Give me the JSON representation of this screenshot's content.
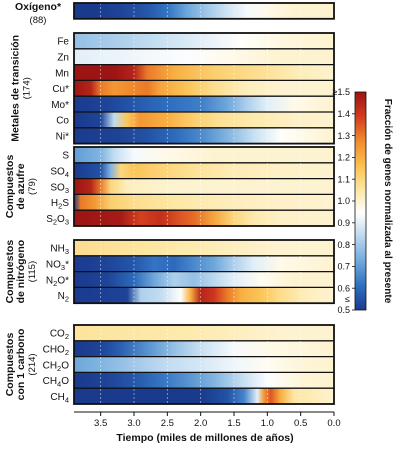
{
  "chart_data": {
    "type": "heatmap",
    "xlabel": "Tiempo (miles de millones de años)",
    "x_ticks": [
      3.5,
      3.0,
      2.5,
      2.0,
      1.5,
      1.0,
      0.5,
      0.0
    ],
    "xlim": [
      3.9,
      0.0
    ],
    "colorbar": {
      "label": "Fracción de genes normalizada al presente",
      "range": [
        0.5,
        1.5
      ],
      "ticks": [
        "0.5",
        "0.6",
        "0.7",
        "0.8",
        "0.9",
        "1.0",
        "1.1",
        "1.2",
        "1.3",
        "1.4"
      ],
      "top_label": "≥1.5",
      "bottom_label": "≤",
      "colors": [
        "#1a3a8e",
        "#2f6fc0",
        "#6fa8dc",
        "#b7d6ee",
        "#ffffff",
        "#fde6a0",
        "#fbbf4c",
        "#f08a2c",
        "#d23a1f",
        "#9c1414"
      ]
    },
    "groups": [
      {
        "name": "Oxígeno*",
        "count": "(88)",
        "rows": [
          {
            "label": "",
            "values": [
              [
                3.9,
                0.5
              ],
              [
                3.6,
                0.5
              ],
              [
                3.2,
                0.52
              ],
              [
                2.8,
                0.56
              ],
              [
                2.5,
                0.62
              ],
              [
                2.2,
                0.72
              ],
              [
                1.9,
                0.8
              ],
              [
                1.6,
                0.87
              ],
              [
                1.3,
                0.93
              ],
              [
                1.0,
                0.97
              ],
              [
                0.6,
                1.0
              ],
              [
                0.0,
                1.0
              ]
            ]
          }
        ]
      },
      {
        "name": "Metales de transición",
        "count": "(174)",
        "rows": [
          {
            "label": "Fe",
            "values": [
              [
                3.9,
                0.78
              ],
              [
                3.2,
                0.82
              ],
              [
                2.6,
                0.86
              ],
              [
                2.0,
                0.9
              ],
              [
                1.4,
                0.95
              ],
              [
                0.8,
                0.98
              ],
              [
                0.0,
                1.0
              ]
            ]
          },
          {
            "label": "Zn",
            "values": [
              [
                3.9,
                0.9
              ],
              [
                3.0,
                0.92
              ],
              [
                2.2,
                0.94
              ],
              [
                1.5,
                0.97
              ],
              [
                0.8,
                1.0
              ],
              [
                0.0,
                1.0
              ]
            ]
          },
          {
            "label": "Mn",
            "values": [
              [
                3.9,
                1.5
              ],
              [
                3.3,
                1.5
              ],
              [
                3.0,
                1.45
              ],
              [
                2.8,
                1.3
              ],
              [
                2.4,
                1.2
              ],
              [
                1.8,
                1.12
              ],
              [
                1.2,
                1.08
              ],
              [
                0.6,
                1.03
              ],
              [
                0.0,
                1.0
              ]
            ]
          },
          {
            "label": "Cu*",
            "values": [
              [
                3.9,
                1.5
              ],
              [
                3.65,
                1.45
              ],
              [
                3.5,
                1.3
              ],
              [
                3.3,
                1.25
              ],
              [
                3.0,
                1.28
              ],
              [
                2.8,
                1.3
              ],
              [
                2.6,
                1.22
              ],
              [
                2.2,
                1.15
              ],
              [
                1.8,
                1.08
              ],
              [
                1.3,
                1.02
              ],
              [
                0.8,
                1.0
              ],
              [
                0.0,
                1.0
              ]
            ]
          },
          {
            "label": "Mo*",
            "values": [
              [
                3.9,
                0.5
              ],
              [
                3.4,
                0.52
              ],
              [
                3.0,
                0.56
              ],
              [
                2.6,
                0.6
              ],
              [
                2.3,
                0.62
              ],
              [
                2.0,
                0.64
              ],
              [
                1.6,
                0.72
              ],
              [
                1.3,
                0.82
              ],
              [
                1.0,
                0.9
              ],
              [
                0.6,
                0.97
              ],
              [
                0.0,
                1.0
              ]
            ]
          },
          {
            "label": "Co",
            "values": [
              [
                3.9,
                0.5
              ],
              [
                3.5,
                0.52
              ],
              [
                3.3,
                0.85
              ],
              [
                3.1,
                1.15
              ],
              [
                2.9,
                1.25
              ],
              [
                2.5,
                1.2
              ],
              [
                2.1,
                1.12
              ],
              [
                1.7,
                1.07
              ],
              [
                1.2,
                1.04
              ],
              [
                0.6,
                1.01
              ],
              [
                0.0,
                1.0
              ]
            ]
          },
          {
            "label": "Ni*",
            "values": [
              [
                3.9,
                0.5
              ],
              [
                3.2,
                0.52
              ],
              [
                2.8,
                0.55
              ],
              [
                2.4,
                0.6
              ],
              [
                2.0,
                0.66
              ],
              [
                1.6,
                0.75
              ],
              [
                1.2,
                0.86
              ],
              [
                0.8,
                0.95
              ],
              [
                0.0,
                1.0
              ]
            ]
          }
        ]
      },
      {
        "name": "Compuestos de azufre",
        "count": "(79)",
        "rows": [
          {
            "label": "S",
            "values": [
              [
                3.9,
                0.7
              ],
              [
                3.5,
                0.75
              ],
              [
                3.3,
                0.85
              ],
              [
                3.0,
                0.93
              ],
              [
                2.5,
                0.97
              ],
              [
                1.8,
                1.0
              ],
              [
                0.0,
                1.0
              ]
            ]
          },
          {
            "label": "SO4",
            "values": [
              [
                3.9,
                0.5
              ],
              [
                3.5,
                0.55
              ],
              [
                3.35,
                0.75
              ],
              [
                3.2,
                1.1
              ],
              [
                3.0,
                1.15
              ],
              [
                2.5,
                1.1
              ],
              [
                2.0,
                1.06
              ],
              [
                1.5,
                1.03
              ],
              [
                0.8,
                1.01
              ],
              [
                0.0,
                1.0
              ]
            ]
          },
          {
            "label": "SO3",
            "values": [
              [
                3.9,
                1.5
              ],
              [
                3.65,
                1.45
              ],
              [
                3.5,
                1.3
              ],
              [
                3.35,
                1.1
              ],
              [
                3.1,
                1.02
              ],
              [
                2.5,
                1.0
              ],
              [
                0.0,
                1.0
              ]
            ]
          },
          {
            "label": "H2S",
            "values": [
              [
                3.9,
                0.5
              ],
              [
                3.8,
                1.3
              ],
              [
                3.6,
                1.25
              ],
              [
                3.35,
                1.12
              ],
              [
                3.0,
                1.08
              ],
              [
                2.4,
                1.05
              ],
              [
                1.8,
                1.03
              ],
              [
                1.0,
                1.01
              ],
              [
                0.0,
                1.0
              ]
            ]
          },
          {
            "label": "S2O3",
            "values": [
              [
                3.9,
                1.5
              ],
              [
                3.2,
                1.48
              ],
              [
                2.9,
                1.38
              ],
              [
                2.6,
                1.42
              ],
              [
                2.3,
                1.35
              ],
              [
                2.1,
                1.32
              ],
              [
                1.8,
                1.22
              ],
              [
                1.5,
                1.1
              ],
              [
                1.2,
                1.04
              ],
              [
                0.8,
                1.01
              ],
              [
                0.0,
                1.0
              ]
            ]
          }
        ]
      },
      {
        "name": "Compuestos de nitrógeno",
        "count": "(115)",
        "rows": [
          {
            "label": "NH3",
            "values": [
              [
                3.9,
                1.08
              ],
              [
                3.0,
                1.06
              ],
              [
                2.2,
                1.04
              ],
              [
                1.5,
                1.02
              ],
              [
                0.8,
                1.0
              ],
              [
                0.0,
                1.0
              ]
            ]
          },
          {
            "label": "NO3*",
            "values": [
              [
                3.9,
                0.5
              ],
              [
                3.4,
                0.52
              ],
              [
                3.0,
                0.56
              ],
              [
                2.7,
                0.62
              ],
              [
                2.4,
                0.6
              ],
              [
                2.1,
                0.66
              ],
              [
                1.8,
                0.72
              ],
              [
                1.5,
                0.82
              ],
              [
                1.2,
                0.9
              ],
              [
                0.8,
                0.97
              ],
              [
                0.0,
                1.0
              ]
            ]
          },
          {
            "label": "N2O*",
            "values": [
              [
                3.9,
                0.5
              ],
              [
                3.4,
                0.52
              ],
              [
                3.0,
                0.6
              ],
              [
                2.7,
                0.72
              ],
              [
                2.4,
                0.82
              ],
              [
                2.1,
                0.78
              ],
              [
                1.8,
                0.84
              ],
              [
                1.5,
                0.9
              ],
              [
                1.1,
                0.96
              ],
              [
                0.6,
                1.0
              ],
              [
                0.0,
                1.0
              ]
            ]
          },
          {
            "label": "N2",
            "values": [
              [
                3.9,
                0.5
              ],
              [
                3.1,
                0.52
              ],
              [
                2.9,
                0.82
              ],
              [
                2.6,
                0.85
              ],
              [
                2.3,
                0.95
              ],
              [
                2.15,
                1.2
              ],
              [
                2.0,
                1.45
              ],
              [
                1.8,
                1.4
              ],
              [
                1.6,
                1.3
              ],
              [
                1.4,
                1.2
              ],
              [
                1.1,
                1.15
              ],
              [
                0.8,
                1.08
              ],
              [
                0.4,
                1.02
              ],
              [
                0.0,
                1.0
              ]
            ]
          }
        ]
      },
      {
        "name": "Compuestos con 1 carbono",
        "count": "(214)",
        "rows": [
          {
            "label": "CO2",
            "values": [
              [
                3.9,
                1.06
              ],
              [
                3.0,
                1.05
              ],
              [
                2.2,
                1.04
              ],
              [
                1.5,
                1.02
              ],
              [
                0.8,
                1.0
              ],
              [
                0.0,
                1.0
              ]
            ]
          },
          {
            "label": "CHO2",
            "values": [
              [
                3.9,
                0.5
              ],
              [
                3.5,
                0.52
              ],
              [
                3.2,
                0.58
              ],
              [
                2.8,
                0.68
              ],
              [
                2.4,
                0.78
              ],
              [
                2.0,
                0.86
              ],
              [
                1.5,
                0.93
              ],
              [
                1.0,
                0.97
              ],
              [
                0.0,
                1.0
              ]
            ]
          },
          {
            "label": "CH2O",
            "values": [
              [
                3.9,
                0.72
              ],
              [
                3.5,
                0.75
              ],
              [
                3.0,
                0.8
              ],
              [
                2.5,
                0.85
              ],
              [
                2.0,
                0.88
              ],
              [
                1.5,
                0.92
              ],
              [
                1.0,
                0.96
              ],
              [
                0.5,
                0.99
              ],
              [
                0.0,
                1.0
              ]
            ]
          },
          {
            "label": "CH4O",
            "values": [
              [
                3.9,
                0.5
              ],
              [
                3.4,
                0.52
              ],
              [
                3.0,
                0.56
              ],
              [
                2.6,
                0.62
              ],
              [
                2.2,
                0.68
              ],
              [
                1.8,
                0.75
              ],
              [
                1.4,
                0.85
              ],
              [
                1.0,
                0.94
              ],
              [
                0.5,
                0.99
              ],
              [
                0.0,
                1.0
              ]
            ]
          },
          {
            "label": "CH4",
            "values": [
              [
                3.9,
                0.5
              ],
              [
                2.0,
                0.5
              ],
              [
                1.6,
                0.55
              ],
              [
                1.35,
                0.65
              ],
              [
                1.15,
                0.9
              ],
              [
                1.05,
                1.25
              ],
              [
                0.95,
                1.35
              ],
              [
                0.8,
                1.2
              ],
              [
                0.6,
                1.05
              ],
              [
                0.0,
                1.0
              ]
            ]
          }
        ]
      }
    ]
  }
}
